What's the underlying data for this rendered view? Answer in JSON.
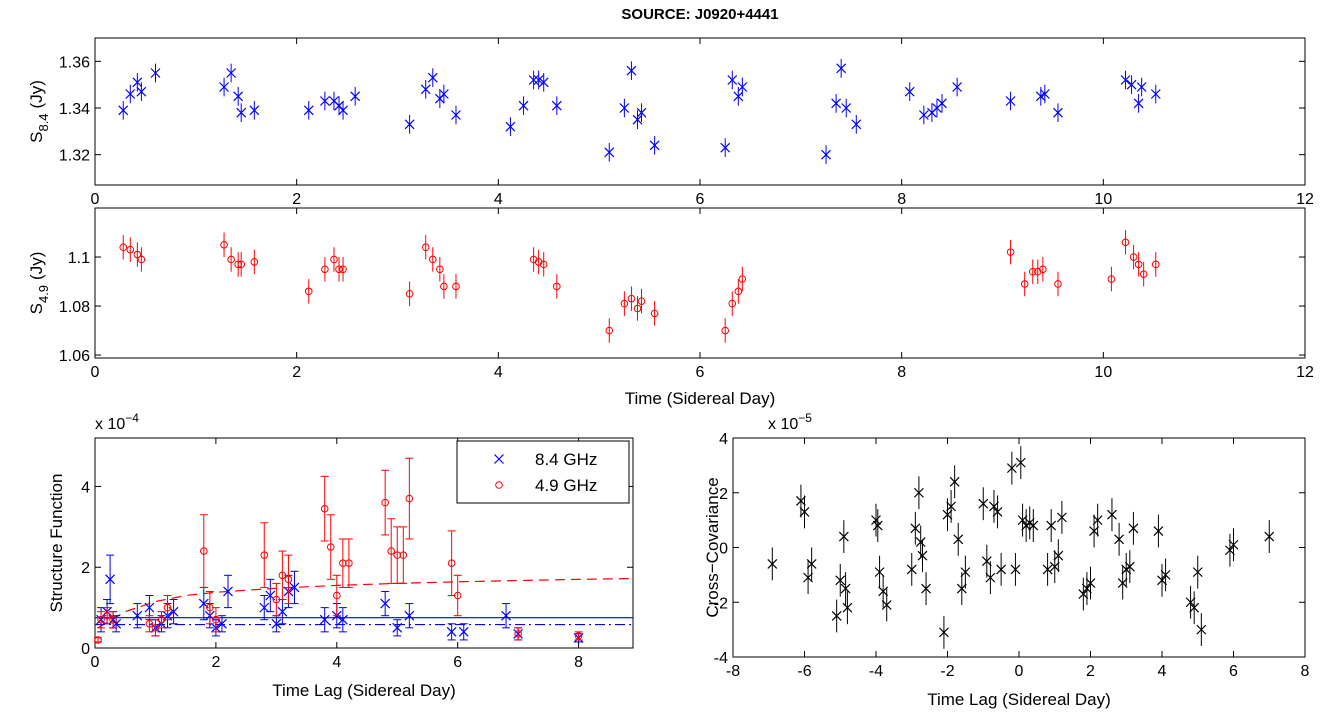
{
  "chart_data": [
    {
      "type": "scatter",
      "title": "SOURCE: J0920+4441",
      "ylabel": {
        "main": "S",
        "sub": "8.4",
        "unit": "(Jy)"
      },
      "xlim": [
        0,
        12
      ],
      "xticks": [
        0,
        2,
        4,
        6,
        8,
        10,
        12
      ],
      "ylim": [
        1.307,
        1.37
      ],
      "yticks": [
        1.32,
        1.34,
        1.36
      ],
      "series": [
        {
          "color": "#0000ff",
          "marker": "x",
          "error": 0.004,
          "x": [
            0.28,
            0.35,
            0.42,
            0.46,
            0.6,
            1.28,
            1.35,
            1.42,
            1.45,
            1.58,
            2.12,
            2.28,
            2.37,
            2.42,
            2.46,
            2.58,
            3.12,
            3.28,
            3.35,
            3.42,
            3.46,
            3.58,
            4.12,
            4.25,
            4.35,
            4.4,
            4.45,
            4.58,
            5.1,
            5.25,
            5.32,
            5.38,
            5.42,
            5.55,
            6.25,
            6.32,
            6.38,
            6.42,
            7.25,
            7.35,
            7.4,
            7.45,
            7.55,
            8.08,
            8.22,
            8.3,
            8.35,
            8.4,
            8.55,
            9.08,
            9.38,
            9.42,
            9.55,
            10.22,
            10.28,
            10.35,
            10.38,
            10.52
          ],
          "values": [
            1.339,
            1.346,
            1.351,
            1.347,
            1.355,
            1.349,
            1.355,
            1.345,
            1.338,
            1.339,
            1.339,
            1.343,
            1.343,
            1.341,
            1.339,
            1.345,
            1.333,
            1.348,
            1.353,
            1.344,
            1.346,
            1.337,
            1.332,
            1.341,
            1.352,
            1.352,
            1.351,
            1.341,
            1.321,
            1.34,
            1.356,
            1.335,
            1.338,
            1.324,
            1.323,
            1.352,
            1.345,
            1.349,
            1.32,
            1.342,
            1.357,
            1.34,
            1.333,
            1.347,
            1.337,
            1.338,
            1.34,
            1.342,
            1.349,
            1.343,
            1.345,
            1.346,
            1.338,
            1.352,
            1.35,
            1.342,
            1.349,
            1.346
          ]
        }
      ]
    },
    {
      "type": "scatter",
      "ylabel": {
        "main": "S",
        "sub": "4.9",
        "unit": "(Jy)"
      },
      "xlabel": "Time (Sidereal Day)",
      "xlim": [
        0,
        12
      ],
      "xticks": [
        0,
        2,
        4,
        6,
        8,
        10,
        12
      ],
      "ylim": [
        1.0588,
        1.12
      ],
      "yticks": [
        1.06,
        1.08,
        1.1
      ],
      "series": [
        {
          "color": "#ff0000",
          "marker": "o",
          "error": 0.005,
          "x": [
            0.28,
            0.35,
            0.42,
            0.46,
            1.28,
            1.35,
            1.42,
            1.45,
            1.58,
            2.12,
            2.28,
            2.37,
            2.42,
            2.46,
            3.12,
            3.28,
            3.35,
            3.42,
            3.46,
            3.58,
            4.35,
            4.4,
            4.45,
            4.58,
            5.1,
            5.25,
            5.32,
            5.38,
            5.42,
            5.55,
            6.25,
            6.32,
            6.38,
            6.42,
            9.08,
            9.22,
            9.3,
            9.35,
            9.4,
            9.55,
            10.08,
            10.22,
            10.3,
            10.35,
            10.4,
            10.52
          ],
          "values": [
            1.104,
            1.103,
            1.101,
            1.099,
            1.105,
            1.099,
            1.097,
            1.097,
            1.098,
            1.086,
            1.095,
            1.099,
            1.095,
            1.095,
            1.085,
            1.104,
            1.099,
            1.095,
            1.088,
            1.088,
            1.099,
            1.098,
            1.097,
            1.088,
            1.07,
            1.081,
            1.083,
            1.079,
            1.082,
            1.077,
            1.07,
            1.081,
            1.086,
            1.091,
            1.102,
            1.089,
            1.094,
            1.094,
            1.095,
            1.089,
            1.091,
            1.106,
            1.1,
            1.097,
            1.093,
            1.097
          ]
        }
      ]
    },
    {
      "type": "scatter",
      "ylabel": {
        "main": "Structure Function"
      },
      "xlabel": "Time Lag (Sidereal Day)",
      "multiplier": {
        "base": "x 10",
        "exp": "−4"
      },
      "xlim": [
        0,
        8.9
      ],
      "xticks": [
        0,
        2,
        4,
        6,
        8
      ],
      "ylim": [
        0,
        5.2
      ],
      "yticks": [
        0,
        2,
        4
      ],
      "legend": "upper right",
      "series": [
        {
          "name": "8.4 GHz",
          "color": "#0000ff",
          "marker": "x",
          "x": [
            0.1,
            0.2,
            0.25,
            0.3,
            0.35,
            0.7,
            0.9,
            1.0,
            1.1,
            1.2,
            1.3,
            1.8,
            1.9,
            2.0,
            2.1,
            2.2,
            2.8,
            2.9,
            3.0,
            3.1,
            3.2,
            3.3,
            3.8,
            4.0,
            4.1,
            4.8,
            5.0,
            5.2,
            5.9,
            6.1,
            6.8,
            7.0,
            8.0
          ],
          "values": [
            0.7,
            0.9,
            1.7,
            0.7,
            0.6,
            0.8,
            1.0,
            0.5,
            0.6,
            0.8,
            0.9,
            1.1,
            0.8,
            0.5,
            0.6,
            1.4,
            1.0,
            1.3,
            0.6,
            0.9,
            1.4,
            1.5,
            0.7,
            0.8,
            0.7,
            1.1,
            0.5,
            0.8,
            0.4,
            0.4,
            0.8,
            0.35,
            0.25
          ],
          "errors": [
            0.3,
            0.3,
            0.6,
            0.2,
            0.2,
            0.3,
            0.3,
            0.2,
            0.2,
            0.3,
            0.3,
            0.4,
            0.3,
            0.2,
            0.2,
            0.4,
            0.3,
            0.4,
            0.2,
            0.3,
            0.4,
            0.4,
            0.3,
            0.3,
            0.3,
            0.3,
            0.2,
            0.3,
            0.2,
            0.2,
            0.3,
            0.15,
            0.1
          ]
        },
        {
          "name": "4.9 GHz",
          "color": "#ff0000",
          "marker": "o",
          "x": [
            0.05,
            0.1,
            0.2,
            0.3,
            0.9,
            1.0,
            1.1,
            1.2,
            1.8,
            1.9,
            2.0,
            2.8,
            3.0,
            3.1,
            3.2,
            3.8,
            3.9,
            4.0,
            4.1,
            4.2,
            4.8,
            4.9,
            5.0,
            5.1,
            5.2,
            5.9,
            6.0,
            7.0,
            8.0
          ],
          "values": [
            0.2,
            0.7,
            0.8,
            0.7,
            0.6,
            0.5,
            0.7,
            1.0,
            2.4,
            1.0,
            0.7,
            2.3,
            1.2,
            1.8,
            1.7,
            3.45,
            2.5,
            1.3,
            2.1,
            2.1,
            3.6,
            2.4,
            2.3,
            2.3,
            3.7,
            2.1,
            1.3,
            0.35,
            0.3
          ],
          "errors": [
            0.05,
            0.2,
            0.2,
            0.2,
            0.2,
            0.2,
            0.2,
            0.3,
            0.9,
            0.4,
            0.3,
            0.8,
            0.4,
            0.6,
            0.6,
            0.8,
            0.8,
            0.5,
            0.6,
            0.6,
            0.8,
            0.8,
            0.7,
            0.7,
            1.0,
            0.8,
            0.5,
            0.15,
            0.1
          ]
        }
      ],
      "fits": [
        {
          "color": "#ff0000",
          "dash": "dashed",
          "x": [
            0.05,
            0.5,
            1,
            1.5,
            2,
            3,
            4,
            5,
            6,
            7,
            8,
            8.9
          ],
          "values": [
            0.5,
            0.9,
            1.15,
            1.3,
            1.38,
            1.48,
            1.55,
            1.6,
            1.64,
            1.67,
            1.7,
            1.72
          ]
        },
        {
          "color": "#0000ff",
          "dash": "solid",
          "x": [
            0,
            8.9
          ],
          "values": [
            0.75,
            0.75
          ]
        },
        {
          "color": "#0000ff",
          "dash": "dashdot",
          "x": [
            0,
            8.9
          ],
          "values": [
            0.58,
            0.58
          ]
        }
      ]
    },
    {
      "type": "scatter",
      "ylabel": {
        "main": "Cross−Covariance"
      },
      "xlabel": "Time Lag (Sidereal Day)",
      "multiplier": {
        "base": "x 10",
        "exp": "−5"
      },
      "xlim": [
        -8,
        8
      ],
      "xticks": [
        -8,
        -6,
        -4,
        -2,
        0,
        2,
        4,
        6,
        8
      ],
      "ylim": [
        -4,
        4
      ],
      "yticks": [
        -4,
        -2,
        0,
        2,
        4
      ],
      "series": [
        {
          "color": "#000000",
          "marker": "x",
          "error": 0.6,
          "x": [
            -6.9,
            -6.1,
            -6.0,
            -5.9,
            -5.8,
            -5.1,
            -5.0,
            -4.9,
            -4.85,
            -4.8,
            -4.0,
            -3.95,
            -3.9,
            -3.8,
            -3.7,
            -3.0,
            -2.9,
            -2.8,
            -2.75,
            -2.7,
            -2.6,
            -2.1,
            -2.0,
            -1.9,
            -1.8,
            -1.7,
            -1.6,
            -1.5,
            -1.0,
            -0.9,
            -0.8,
            -0.7,
            -0.6,
            -0.5,
            -0.2,
            -0.1,
            0.05,
            0.1,
            0.2,
            0.3,
            0.4,
            0.8,
            0.9,
            1.0,
            1.1,
            1.2,
            1.8,
            1.9,
            2.0,
            2.1,
            2.2,
            2.6,
            2.8,
            2.9,
            3.0,
            3.1,
            3.2,
            3.9,
            4.0,
            4.1,
            4.8,
            4.9,
            5.0,
            5.1,
            5.9,
            6.0,
            7.0
          ],
          "values": [
            -0.6,
            1.7,
            1.3,
            -1.1,
            -0.6,
            -2.5,
            -1.2,
            0.4,
            -1.5,
            -2.2,
            1.0,
            0.8,
            -0.9,
            -1.6,
            -2.1,
            -0.8,
            0.7,
            2.0,
            0.2,
            -0.3,
            -1.5,
            -3.1,
            1.2,
            1.5,
            2.4,
            0.3,
            -1.5,
            -0.9,
            1.6,
            -0.5,
            -1.1,
            1.5,
            1.3,
            -0.8,
            2.9,
            -0.8,
            3.1,
            1.0,
            0.8,
            0.9,
            0.8,
            -0.8,
            0.8,
            -0.7,
            -0.3,
            1.1,
            -1.7,
            -1.5,
            -1.3,
            0.6,
            1.0,
            1.2,
            0.3,
            -1.3,
            -0.8,
            -0.7,
            0.7,
            0.6,
            -1.2,
            -1.0,
            -2.0,
            -2.2,
            -0.9,
            -3.0,
            -0.1,
            0.1,
            0.4
          ]
        }
      ]
    }
  ]
}
